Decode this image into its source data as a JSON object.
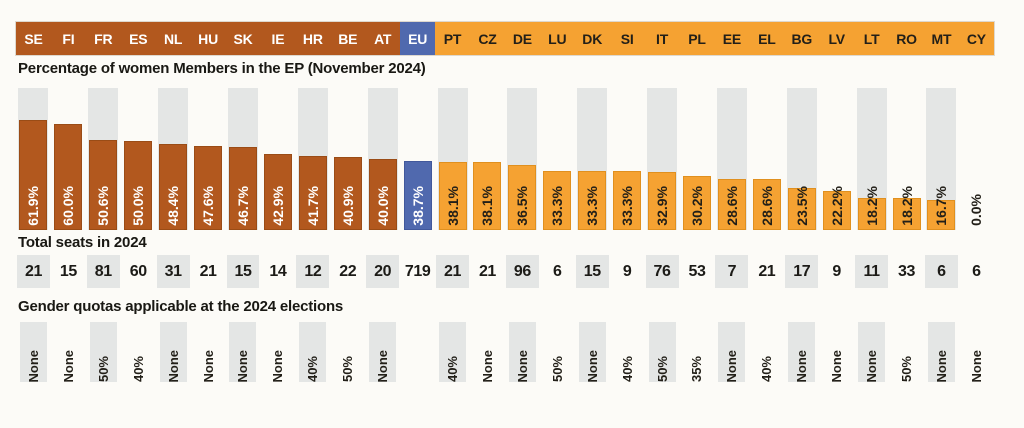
{
  "page": {
    "chart_title": "Percentage of women Members in the EP (November 2024)",
    "seats_title": "Total seats in 2024",
    "quotas_title": "Gender quotas applicable at the 2024 elections"
  },
  "colors": {
    "dark_orange": "#b2581e",
    "light_orange": "#f5a232",
    "eu_blue": "#5069ae",
    "stripe_grey": "#e4e6e5",
    "text_dark": "#221f18",
    "text_light": "#ffffff"
  },
  "chart_data": {
    "type": "bar",
    "title": "Percentage of women Members in the EP (November 2024)",
    "xlabel": "",
    "ylabel": "Percentage of women Members",
    "ylim": [
      0,
      80
    ],
    "grid": false,
    "legend_position": "none",
    "categories": [
      "SE",
      "FI",
      "FR",
      "ES",
      "NL",
      "HU",
      "SK",
      "IE",
      "HR",
      "BE",
      "AT",
      "EU",
      "PT",
      "CZ",
      "DE",
      "LU",
      "DK",
      "SI",
      "IT",
      "PL",
      "EE",
      "EL",
      "BG",
      "LV",
      "LT",
      "RO",
      "MT",
      "CY"
    ],
    "highlight_category": "EU",
    "series": [
      {
        "name": "Percentage of women Members in the EP (November 2024)",
        "unit": "%",
        "values": [
          61.9,
          60.0,
          50.6,
          50.0,
          48.4,
          47.6,
          46.7,
          42.9,
          41.7,
          40.9,
          40.0,
          38.7,
          38.1,
          38.1,
          36.5,
          33.3,
          33.3,
          33.3,
          32.9,
          30.2,
          28.6,
          28.6,
          23.5,
          22.2,
          18.2,
          18.2,
          16.7,
          0.0
        ]
      },
      {
        "name": "Total seats in 2024",
        "unit": "seats",
        "values": [
          21,
          15,
          81,
          60,
          31,
          21,
          15,
          14,
          12,
          22,
          20,
          719,
          21,
          21,
          96,
          6,
          15,
          9,
          76,
          53,
          7,
          21,
          17,
          9,
          11,
          33,
          6,
          6
        ]
      },
      {
        "name": "Gender quotas applicable at the 2024 elections",
        "unit": "",
        "values": [
          "None",
          "None",
          "50%",
          "40%",
          "None",
          "None",
          "None",
          "None",
          "40%",
          "50%",
          "None",
          "",
          "40%",
          "None",
          "None",
          "50%",
          "None",
          "40%",
          "50%",
          "35%",
          "None",
          "40%",
          "None",
          "None",
          "None",
          "50%",
          "None",
          "None"
        ]
      }
    ]
  }
}
